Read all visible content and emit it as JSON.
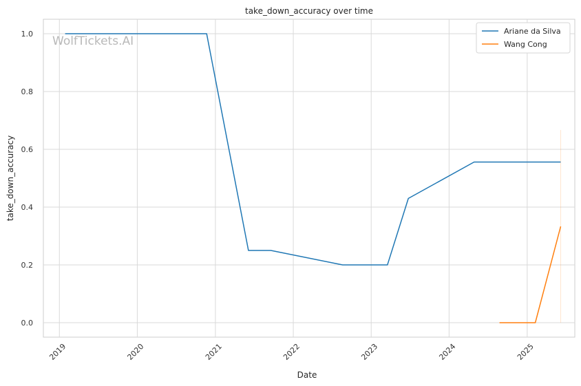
{
  "chart_data": {
    "type": "line",
    "title": "take_down_accuracy over time",
    "xlabel": "Date",
    "ylabel": "take_down_accuracy",
    "watermark": "WolfTickets.AI",
    "xlim": [
      "2018-10-18",
      "2025-08-12"
    ],
    "ylim": [
      -0.05,
      1.05
    ],
    "x_ticks": [
      "2019",
      "2020",
      "2021",
      "2022",
      "2023",
      "2024",
      "2025"
    ],
    "y_ticks": [
      "0.0",
      "0.2",
      "0.4",
      "0.6",
      "0.8",
      "1.0"
    ],
    "grid": true,
    "legend_position": "top-right",
    "series": [
      {
        "name": "Ariane da Silva",
        "color": "#1f77b4",
        "points": [
          {
            "x": "2019-01-28",
            "y": 1.0
          },
          {
            "x": "2020-11-21",
            "y": 1.0
          },
          {
            "x": "2021-06-05",
            "y": 0.25
          },
          {
            "x": "2021-09-18",
            "y": 0.25
          },
          {
            "x": "2022-08-20",
            "y": 0.2
          },
          {
            "x": "2023-03-18",
            "y": 0.2
          },
          {
            "x": "2023-06-24",
            "y": 0.43
          },
          {
            "x": "2024-04-27",
            "y": 0.556
          },
          {
            "x": "2025-06-07",
            "y": 0.556
          }
        ]
      },
      {
        "name": "Wang Cong",
        "color": "#ff7f0e",
        "points": [
          {
            "x": "2024-08-24",
            "y": 0.0
          },
          {
            "x": "2025-02-08",
            "y": 0.0
          },
          {
            "x": "2025-06-07",
            "y": 0.333
          }
        ],
        "band": {
          "x": "2025-06-07",
          "low": 0.0,
          "high": 0.667
        }
      }
    ]
  }
}
